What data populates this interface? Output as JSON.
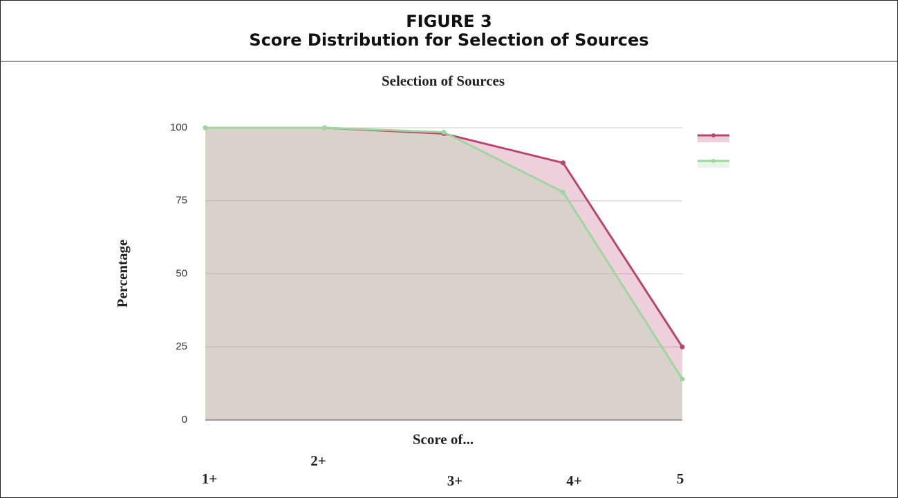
{
  "figure_label": "FIGURE 3",
  "figure_title": "Score Distribution for Selection of Sources",
  "chart_data": {
    "type": "line",
    "title": "Selection of Sources",
    "x_label": "Score of...",
    "y_label": "Percentage",
    "categories": [
      "1+",
      "2+",
      "3+",
      "4+",
      "5"
    ],
    "series": [
      {
        "color": "#b9456f",
        "values": [
          100,
          100,
          98,
          88,
          25
        ]
      },
      {
        "color": "#9fd69d",
        "values": [
          100,
          100,
          98.5,
          78,
          14
        ]
      }
    ],
    "ylim": [
      0,
      100
    ],
    "yticks": [
      0,
      25,
      50,
      75,
      100
    ],
    "grid": true,
    "area": true,
    "legend": "right"
  }
}
